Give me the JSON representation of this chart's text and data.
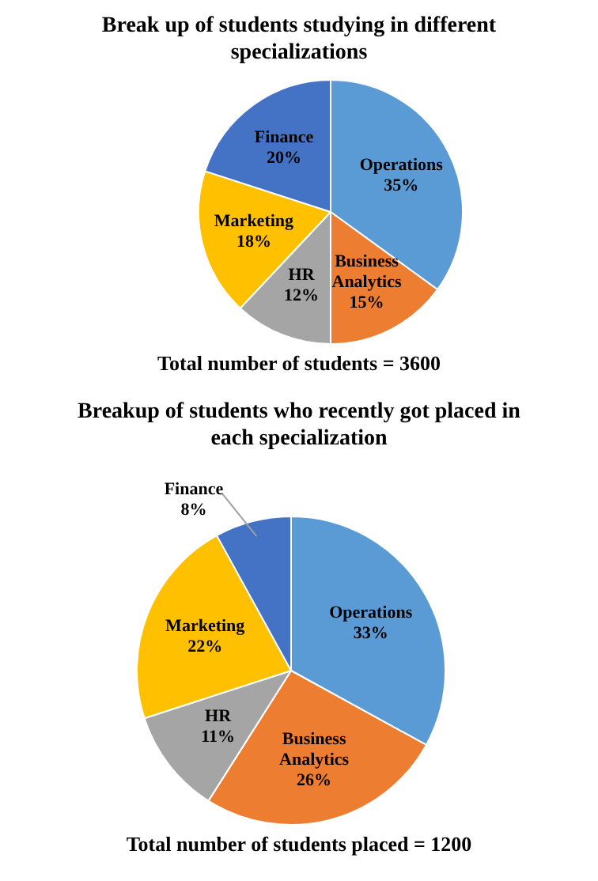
{
  "chart_data": [
    {
      "type": "pie",
      "title": "Break up of students studying in different specializations",
      "categories": [
        "Operations",
        "Business Analytics",
        "HR",
        "Marketing",
        "Finance"
      ],
      "values": [
        35,
        15,
        12,
        18,
        20
      ],
      "value_labels": [
        "35%",
        "15%",
        "12%",
        "18%",
        "20%"
      ],
      "colors": [
        "#5b9bd5",
        "#ed7d31",
        "#a5a5a5",
        "#ffc000",
        "#4472c4"
      ],
      "annotations": [
        "Total number of students = 3600"
      ]
    },
    {
      "type": "pie",
      "title": "Breakup of students who recently got placed in each specialization",
      "categories": [
        "Operations",
        "Business Analytics",
        "HR",
        "Marketing",
        "Finance"
      ],
      "values": [
        33,
        26,
        11,
        22,
        8
      ],
      "value_labels": [
        "33%",
        "26%",
        "11%",
        "22%",
        "8%"
      ],
      "colors": [
        "#5b9bd5",
        "#ed7d31",
        "#a5a5a5",
        "#ffc000",
        "#4472c4"
      ],
      "annotations": [
        "Total number of students placed = 1200"
      ]
    }
  ]
}
